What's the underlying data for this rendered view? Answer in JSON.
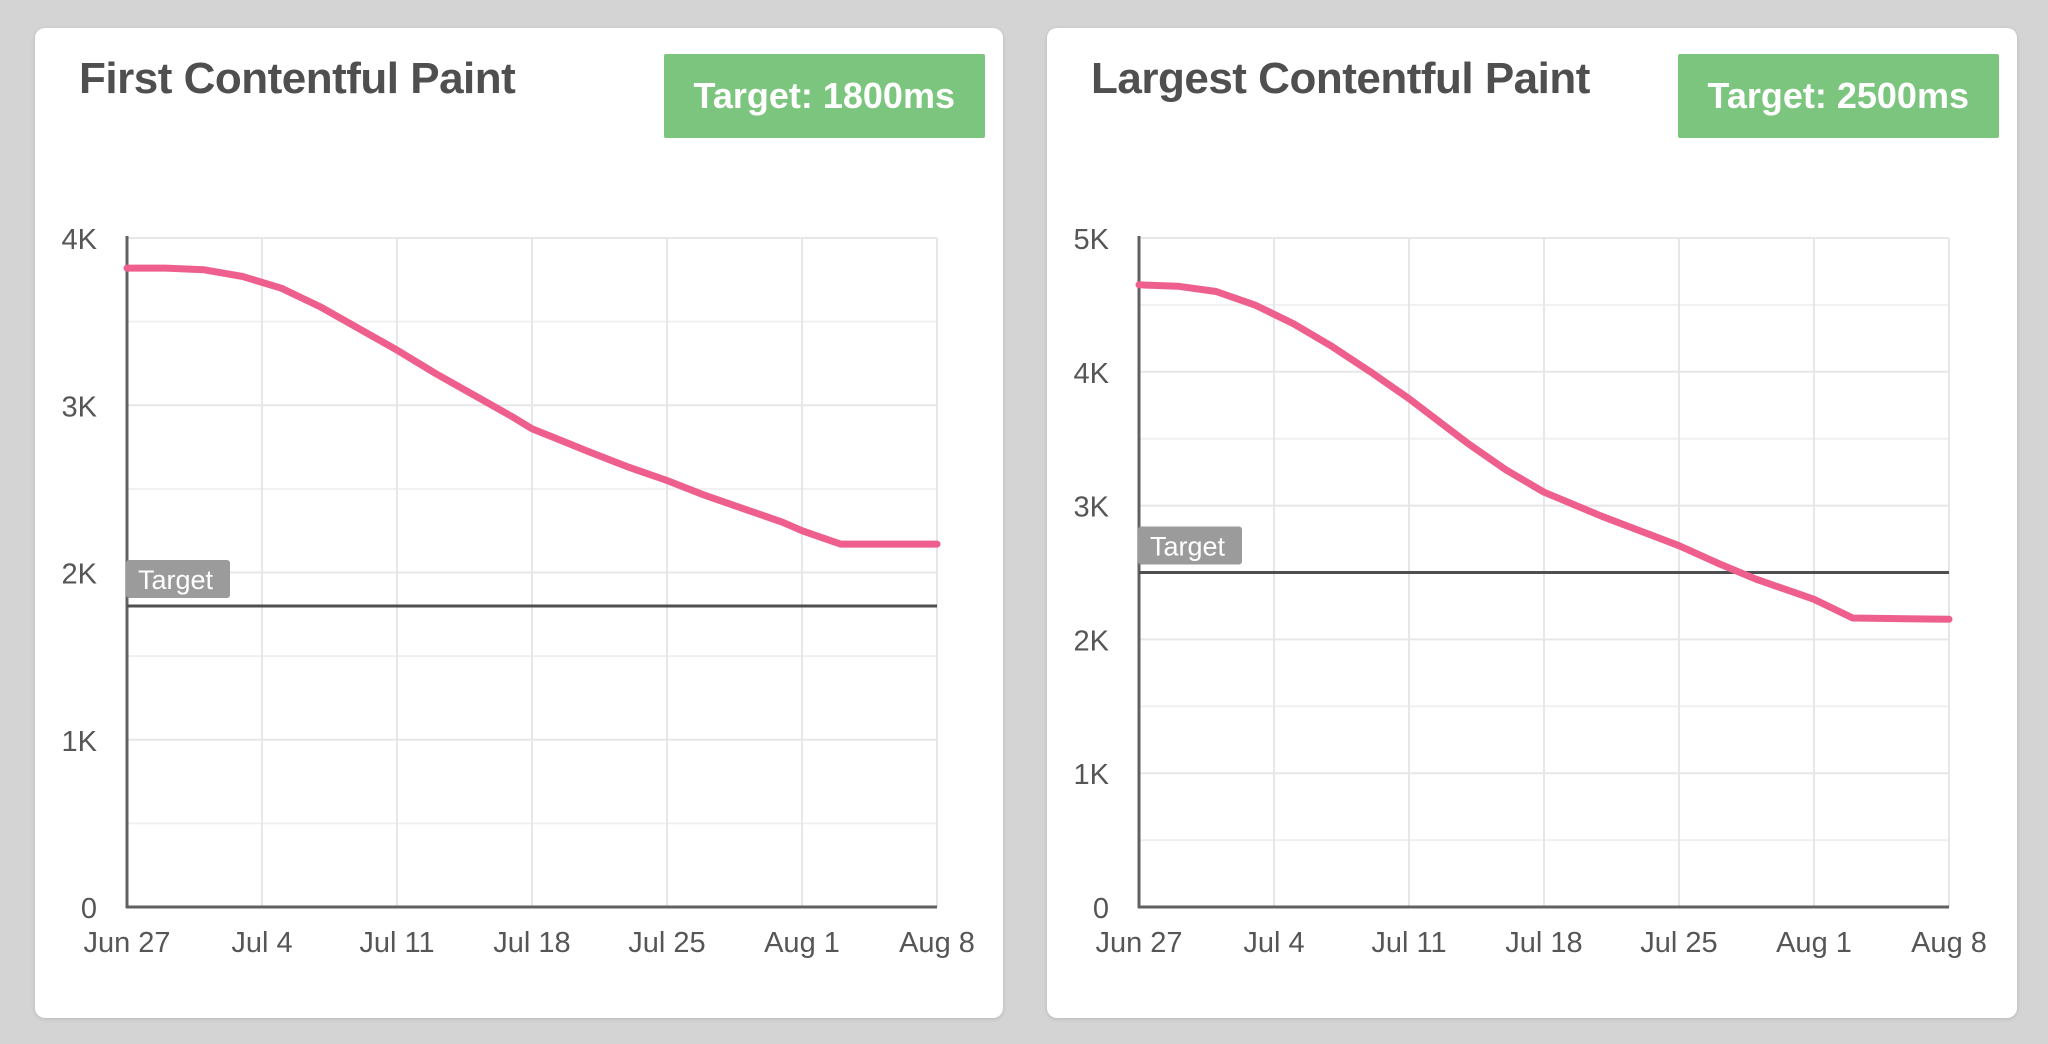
{
  "page": {
    "background": "#d4d4d4",
    "card_background": "#ffffff"
  },
  "colors": {
    "line_pink": "#ee5f8d",
    "badge_green": "#7cc57e",
    "target_chip_gray": "#9b9b9b",
    "axis_gray": "#616161",
    "target_line_gray": "#4f4f4f",
    "grid_gray": "#e7e7e7",
    "tick_text_gray": "#565656",
    "title_gray": "#4f4f4f"
  },
  "cards": [
    {
      "title": "First Contentful Paint",
      "badge_label": "Target: 1800ms"
    },
    {
      "title": "Largest Contentful Paint",
      "badge_label": "Target: 2500ms"
    }
  ],
  "chart_data": [
    {
      "type": "line",
      "title": "First Contentful Paint",
      "unit": "ms",
      "xlabel": "",
      "ylabel": "",
      "grid": true,
      "legend_position": "none",
      "x_tick_labels": [
        "Jun 27",
        "Jul 4",
        "Jul 11",
        "Jul 18",
        "Jul 25",
        "Aug 1",
        "Aug 8"
      ],
      "x_tick_days": [
        0,
        7,
        14,
        21,
        28,
        35,
        42
      ],
      "x_range_days": [
        0,
        42
      ],
      "ylim": [
        0,
        4000
      ],
      "y_ticks": [
        {
          "value": 0,
          "label": "0"
        },
        {
          "value": 1000,
          "label": "1K"
        },
        {
          "value": 2000,
          "label": "2K"
        },
        {
          "value": 3000,
          "label": "3K"
        },
        {
          "value": 4000,
          "label": "4K"
        }
      ],
      "target": {
        "value": 1800,
        "label": "Target"
      },
      "series": [
        {
          "name": "First Contentful Paint (ms)",
          "color": "#ee5f8d",
          "points": [
            [
              0,
              3820
            ],
            [
              2,
              3820
            ],
            [
              4,
              3810
            ],
            [
              6,
              3770
            ],
            [
              8,
              3700
            ],
            [
              10,
              3590
            ],
            [
              12,
              3460
            ],
            [
              14,
              3330
            ],
            [
              16,
              3190
            ],
            [
              18,
              3060
            ],
            [
              20,
              2930
            ],
            [
              21,
              2860
            ],
            [
              22.5,
              2790
            ],
            [
              24,
              2720
            ],
            [
              26,
              2630
            ],
            [
              28,
              2550
            ],
            [
              30,
              2460
            ],
            [
              32,
              2380
            ],
            [
              34,
              2300
            ],
            [
              35,
              2250
            ],
            [
              36,
              2210
            ],
            [
              37,
              2170
            ],
            [
              42,
              2170
            ]
          ]
        }
      ]
    },
    {
      "type": "line",
      "title": "Largest Contentful Paint",
      "unit": "ms",
      "xlabel": "",
      "ylabel": "",
      "grid": true,
      "legend_position": "none",
      "x_tick_labels": [
        "Jun 27",
        "Jul 4",
        "Jul 11",
        "Jul 18",
        "Jul 25",
        "Aug 1",
        "Aug 8"
      ],
      "x_tick_days": [
        0,
        7,
        14,
        21,
        28,
        35,
        42
      ],
      "x_range_days": [
        0,
        42
      ],
      "ylim": [
        0,
        5000
      ],
      "y_ticks": [
        {
          "value": 0,
          "label": "0"
        },
        {
          "value": 1000,
          "label": "1K"
        },
        {
          "value": 2000,
          "label": "2K"
        },
        {
          "value": 3000,
          "label": "3K"
        },
        {
          "value": 4000,
          "label": "4K"
        },
        {
          "value": 5000,
          "label": "5K"
        }
      ],
      "target": {
        "value": 2500,
        "label": "Target"
      },
      "series": [
        {
          "name": "Largest Contentful Paint (ms)",
          "color": "#ee5f8d",
          "points": [
            [
              0,
              4650
            ],
            [
              2,
              4640
            ],
            [
              4,
              4600
            ],
            [
              6,
              4500
            ],
            [
              8,
              4360
            ],
            [
              10,
              4190
            ],
            [
              12,
              4000
            ],
            [
              14,
              3800
            ],
            [
              17,
              3470
            ],
            [
              19,
              3270
            ],
            [
              21,
              3100
            ],
            [
              22,
              3040
            ],
            [
              24,
              2920
            ],
            [
              26,
              2810
            ],
            [
              28,
              2700
            ],
            [
              30,
              2570
            ],
            [
              32,
              2450
            ],
            [
              34,
              2350
            ],
            [
              35,
              2300
            ],
            [
              36,
              2230
            ],
            [
              37,
              2160
            ],
            [
              42,
              2150
            ]
          ]
        }
      ]
    }
  ]
}
